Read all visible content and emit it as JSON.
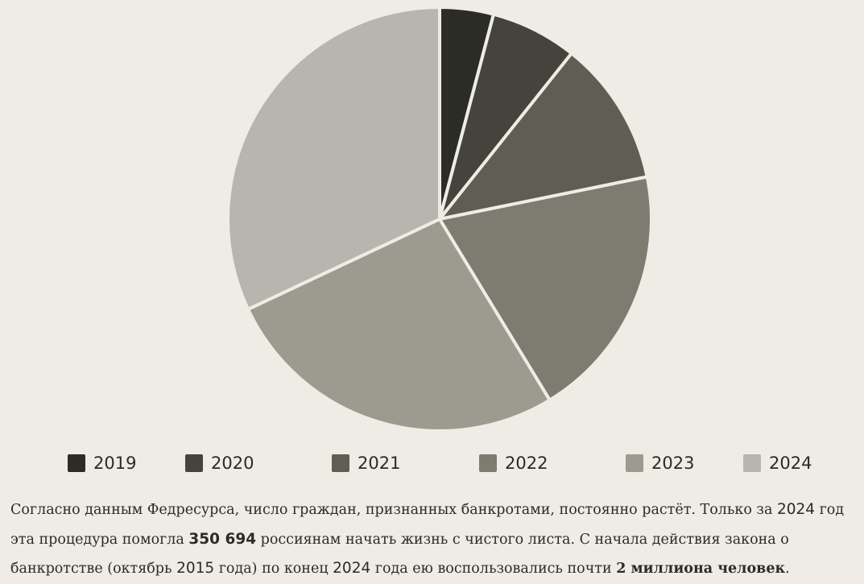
{
  "chart_data": {
    "type": "pie",
    "categories": [
      "2019",
      "2020",
      "2021",
      "2022",
      "2023",
      "2024"
    ],
    "values": [
      4.1,
      6.6,
      11.1,
      19.5,
      26.7,
      32.0
    ],
    "colors": [
      "#2c2c27",
      "#44443c",
      "#5e5e55",
      "#7c7c71",
      "#9b9b8f",
      "#b6b6ae"
    ],
    "start_angle_deg": 0,
    "direction": "clockwise",
    "slice_separator_color": "#efece5"
  },
  "legend": [
    {
      "label": "2019",
      "color": "#2c2c27"
    },
    {
      "label": "2020",
      "color": "#44443c"
    },
    {
      "label": "2021",
      "color": "#5e5e55"
    },
    {
      "label": "2022",
      "color": "#7c7c71"
    },
    {
      "label": "2023",
      "color": "#9b9b8f"
    },
    {
      "label": "2024",
      "color": "#b6b6ae"
    }
  ],
  "caption": {
    "line1_text": "Согласно данным Федресурса, число граждан, признанных банкротами, постоянно растёт. Только за ",
    "line1_year": "2024",
    "line1_end": " год",
    "line2_start": "эта процедура помогла ",
    "line2_number": "350 694",
    "line2_end": " россиянам начать жизнь с чистого листа. С начала действия закона о",
    "line3_start": "банкротстве (октябрь ",
    "line3_year1": "2015",
    "line3_mid": " года) по конец ",
    "line3_year2": "2024",
    "line3_mid2": " года ею воспользовались почти ",
    "line3_bold": "2 миллиона человек",
    "line3_end": "."
  }
}
